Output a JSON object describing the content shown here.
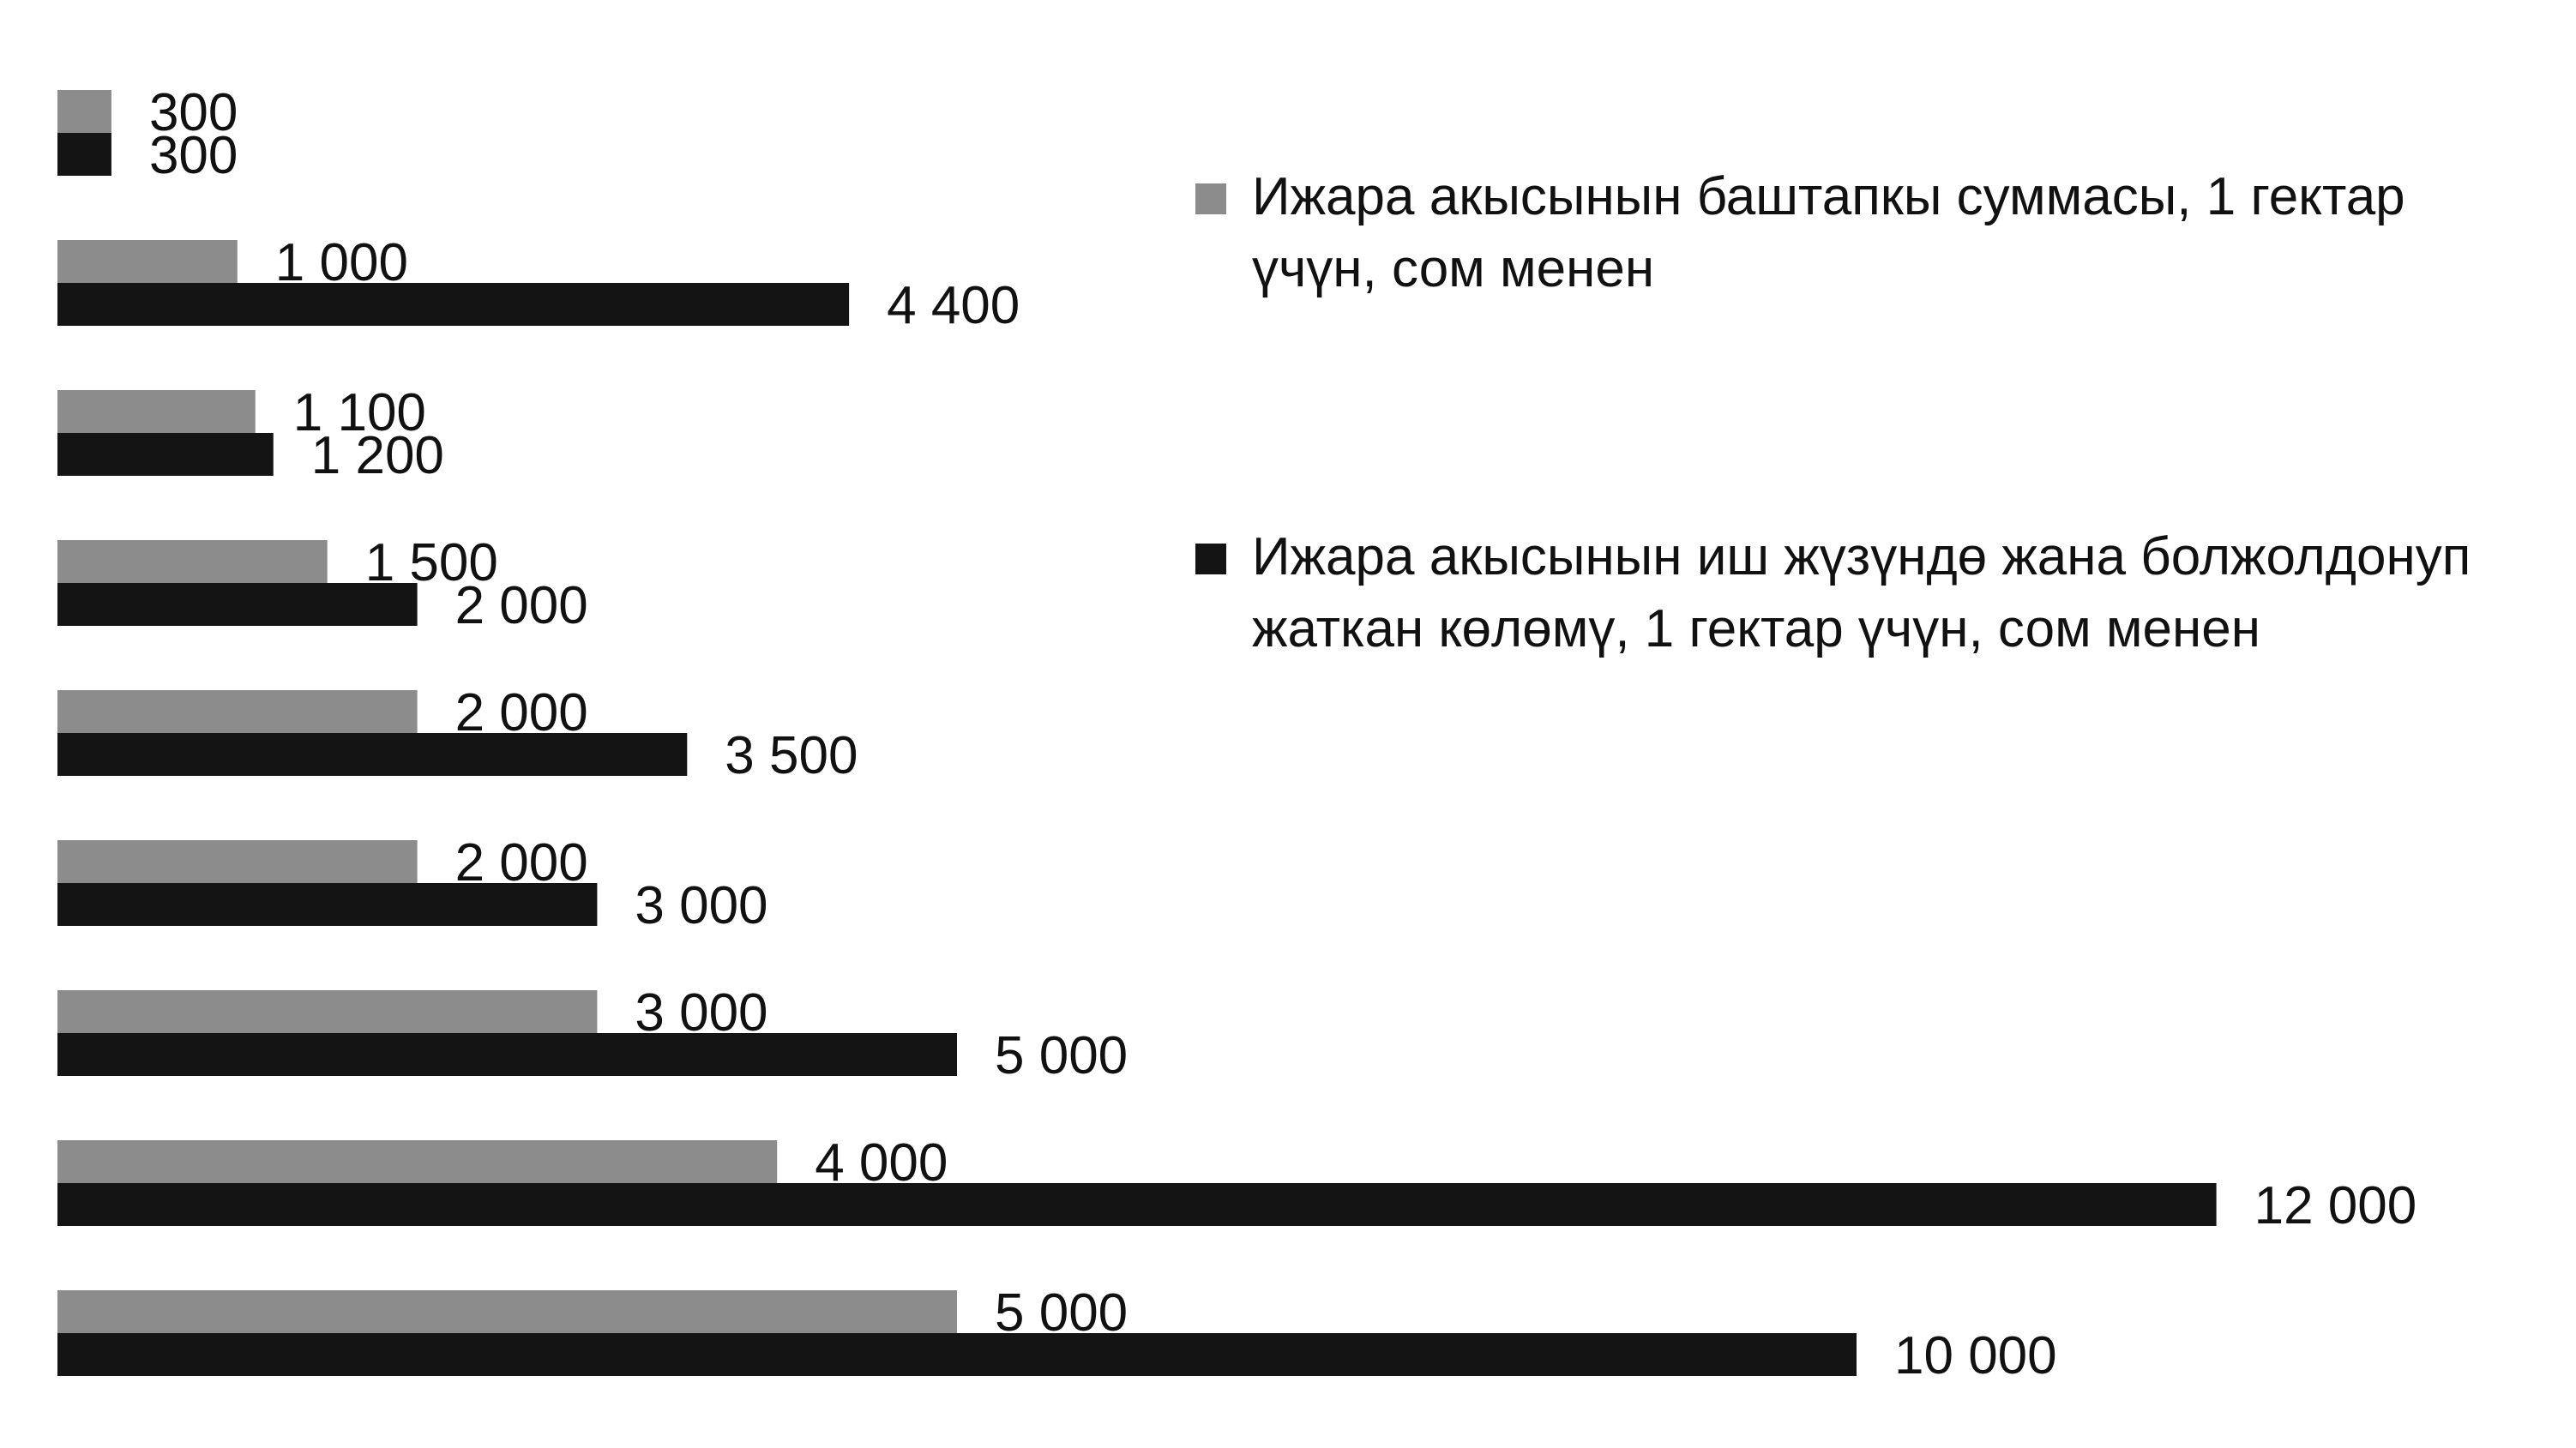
{
  "chart_data": {
    "type": "bar",
    "orientation": "horizontal",
    "grid": false,
    "legend_placement": "right",
    "xlim": [
      0,
      12000
    ],
    "series": [
      {
        "name": "Ижара акысынын баштапкы суммасы, 1 гектар үчүн, сом менен",
        "color": "#8c8c8c",
        "values": [
          300,
          1000,
          1100,
          1500,
          2000,
          2000,
          3000,
          4000,
          5000
        ],
        "labels": [
          "300",
          "1 000",
          "1 100",
          "1 500",
          "2 000",
          "2 000",
          "3 000",
          "4 000",
          "5 000"
        ]
      },
      {
        "name": "Ижара акысынын иш жүзүндө жана болжолдонуп жаткан көлөмү, 1 гектар үчүн, сом менен",
        "color": "#141414",
        "values": [
          300,
          4400,
          1200,
          2000,
          3500,
          3000,
          5000,
          12000,
          10000
        ],
        "labels": [
          "300",
          "4 400",
          "1 200",
          "2 000",
          "3 500",
          "3 000",
          "5 000",
          "12 000",
          "10 000"
        ]
      }
    ]
  },
  "legend": {
    "initial": {
      "line1": "Ижара акысынын баштапкы суммасы, 1 гектар",
      "line2": "үчүн, сом менен"
    },
    "actual": {
      "line1": "Ижара акысынын иш жүзүндө жана болжолдонуп",
      "line2": "жаткан көлөмү, 1 гектар үчүн, сом менен"
    }
  }
}
